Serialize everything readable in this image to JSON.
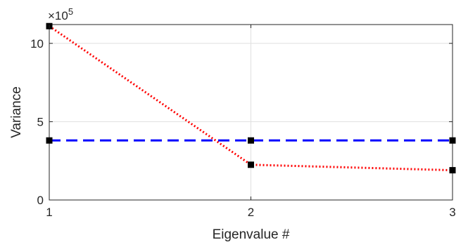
{
  "chart_data": {
    "type": "line",
    "xlabel": "Eigenvalue #",
    "ylabel": "Variance",
    "y_multiplier_label": {
      "base": "×10",
      "exponent": "5"
    },
    "x": [
      1,
      2,
      3
    ],
    "x_tick_labels": [
      "1",
      "2",
      "3"
    ],
    "y_tick_labels": [
      "0",
      "5",
      "10"
    ],
    "y_ticks": [
      0,
      5,
      10
    ],
    "xlim": [
      1,
      3
    ],
    "ylim": [
      0,
      11.2
    ],
    "grid": true,
    "series": [
      {
        "values": [
          11.1,
          2.25,
          1.9
        ],
        "color": "#ff0000",
        "line_style": "dotted",
        "marker": "square",
        "marker_color": "#000000"
      },
      {
        "values": [
          3.8,
          3.8,
          3.8
        ],
        "color": "#0000ff",
        "line_style": "dashed",
        "marker": "square",
        "marker_color": "#000000"
      }
    ]
  }
}
